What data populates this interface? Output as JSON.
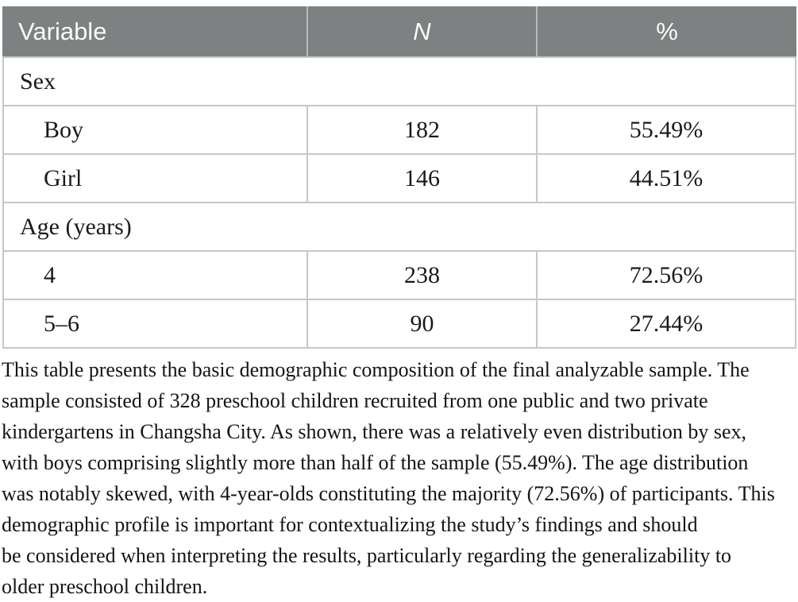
{
  "styles": {
    "header_bg": "#7e8181",
    "header_text_color": "#fafafa",
    "border_color": "#c6c7c7",
    "body_text_color": "#1a1a1a"
  },
  "table": {
    "columns": [
      {
        "label": "Variable"
      },
      {
        "label": "N"
      },
      {
        "label": "%"
      }
    ],
    "rows": [
      {
        "type": "category",
        "label": "Sex"
      },
      {
        "type": "data",
        "label": "Boy",
        "n": "182",
        "percent": "55.49%"
      },
      {
        "type": "data",
        "label": "Girl",
        "n": "146",
        "percent": "44.51%"
      },
      {
        "type": "category",
        "label": "Age (years)"
      },
      {
        "type": "data",
        "label": "4",
        "n": "238",
        "percent": "72.56%"
      },
      {
        "type": "data",
        "label": "5–6",
        "n": "90",
        "percent": "27.44%"
      }
    ]
  },
  "paragraph": {
    "lines": [
      "This table presents the basic demographic composition of the final analyzable sample. The",
      "sample consisted of 328 preschool children recruited from one public and two private",
      "kindergartens in Changsha City. As shown, there was a relatively even distribution by sex,",
      "with boys comprising slightly more than half of the sample (55.49%). The age distribution",
      "was notably skewed, with 4-year-olds constituting the majority (72.56%) of participants. This",
      "demographic profile is important for contextualizing the study’s findings and should",
      "be considered when interpreting the results, particularly regarding the generalizability to",
      "older preschool children."
    ]
  }
}
